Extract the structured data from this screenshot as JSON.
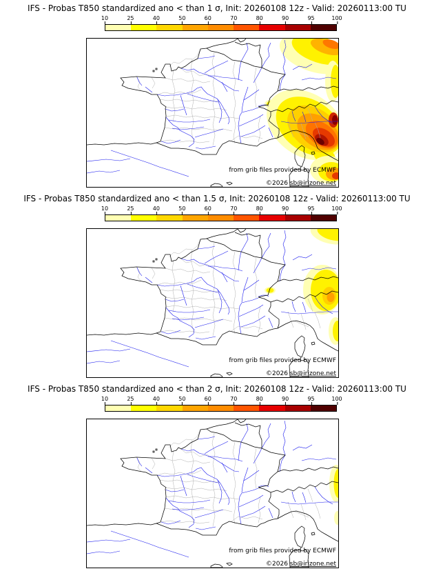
{
  "colorbar": {
    "ticks": [
      "10",
      "25",
      "40",
      "50",
      "60",
      "70",
      "80",
      "90",
      "95",
      "100"
    ],
    "colors": [
      "#FFFFB3",
      "#FFFF00",
      "#FFD700",
      "#FFA500",
      "#FF8C00",
      "#FF5500",
      "#E60000",
      "#A80000",
      "#500000"
    ],
    "unit": "%"
  },
  "panels": [
    {
      "title": "IFS - Probas T850  standardized ano < than 1 σ, Init: 20260108 12z - Valid: 20260113:00 TU",
      "threshold_sigma": "1"
    },
    {
      "title": "IFS - Probas T850  standardized ano < than 1.5 σ, Init: 20260108 12z - Valid: 20260113:00 TU",
      "threshold_sigma": "1.5"
    },
    {
      "title": "IFS - Probas T850  standardized ano < than 2 σ, Init: 20260108 12z - Valid: 20260113:00 TU",
      "threshold_sigma": "2"
    }
  ],
  "map": {
    "attribution_line1": "from grib files provided by ECMWF",
    "attribution_copyright_prefix": "©2026 ",
    "attribution_email": "sb@irizone.net"
  },
  "model": {
    "name": "IFS",
    "field": "T850",
    "init": "20260108 12z",
    "valid": "20260113:00 TU"
  }
}
